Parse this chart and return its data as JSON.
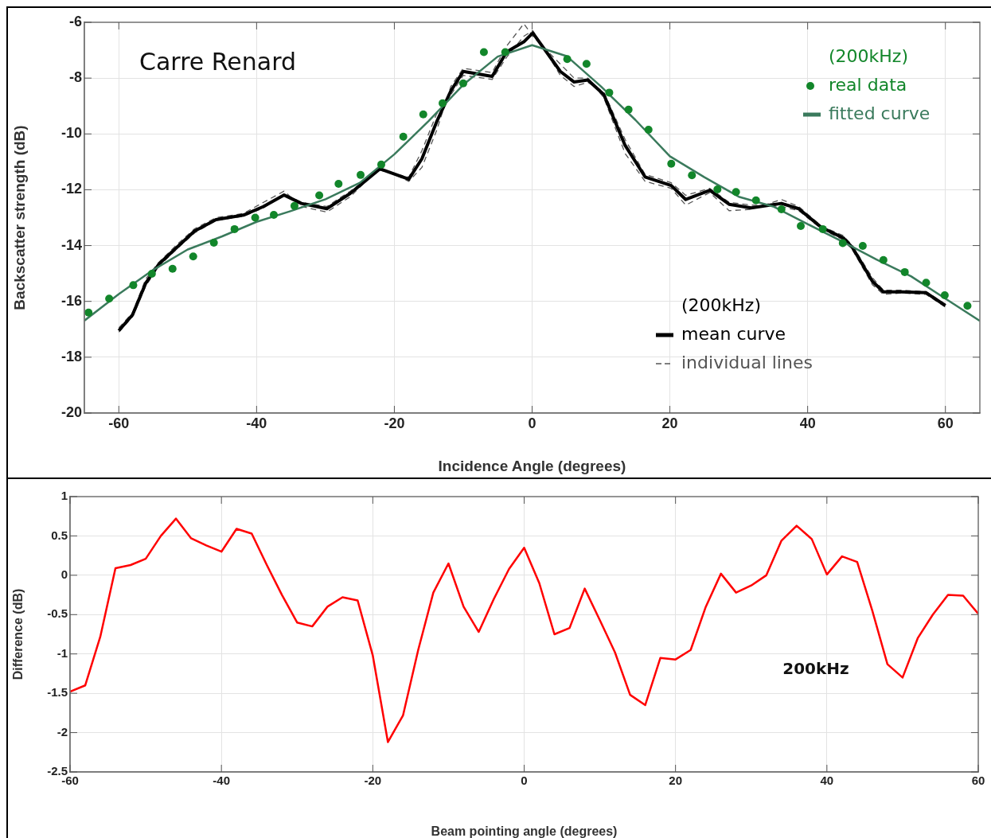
{
  "chart_data": [
    {
      "type": "line",
      "xlabel": "Incidence Angle (degrees)",
      "ylabel": "Backscatter strength (dB)",
      "annotations": [
        "Carre Renard",
        "(200kHz)",
        "(200kHz)"
      ],
      "xlim": [
        -65,
        65
      ],
      "xticks": [
        -60,
        -40,
        -20,
        0,
        20,
        40,
        60
      ],
      "ylim": [
        -20,
        -6
      ],
      "yticks": [
        -20,
        -18,
        -16,
        -14,
        -12,
        -10,
        -8,
        -6
      ],
      "grid": true,
      "legend": "right",
      "marker": "none",
      "series": [
        {
          "name": "real data",
          "type": "scatter",
          "marker": "circle",
          "color": "#12862a",
          "x": [
            -64.4,
            -61.4,
            -57.9,
            -55.2,
            -52.2,
            -49.2,
            -46.2,
            -43.2,
            -40.2,
            -37.5,
            -34.5,
            -30.9,
            -28.1,
            -24.9,
            -21.9,
            -18.7,
            -15.8,
            -13.0,
            -10.0,
            -7.0,
            -3.9,
            5.1,
            7.9,
            11.2,
            14.0,
            16.9,
            20.2,
            23.2,
            26.9,
            29.6,
            32.5,
            36.2,
            39.0,
            42.2,
            45.1,
            48.0,
            51.0,
            54.1,
            57.2,
            59.9,
            63.2
          ],
          "values": [
            -16.4,
            -15.9,
            -15.42,
            -15.01,
            -14.83,
            -14.39,
            -13.9,
            -13.41,
            -13.0,
            -12.9,
            -12.58,
            -12.2,
            -11.79,
            -11.47,
            -11.1,
            -10.1,
            -9.3,
            -8.9,
            -8.19,
            -7.07,
            -7.07,
            -7.32,
            -7.49,
            -8.52,
            -9.13,
            -9.85,
            -11.07,
            -11.48,
            -11.99,
            -12.08,
            -12.38,
            -12.7,
            -13.3,
            -13.41,
            -13.91,
            -14.01,
            -14.52,
            -14.95,
            -15.33,
            -15.78,
            -16.16
          ]
        },
        {
          "name": "fitted curve",
          "color": "#3a7a5c",
          "x": [
            -65,
            -60,
            -55,
            -50,
            -45,
            -40,
            -35,
            -30,
            -25,
            -20,
            -15,
            -10,
            -5,
            0,
            5,
            10,
            15,
            20,
            25,
            30,
            35,
            40,
            45,
            50,
            55,
            60,
            65
          ],
          "values": [
            -16.69,
            -15.74,
            -14.87,
            -14.14,
            -13.67,
            -13.15,
            -12.76,
            -12.34,
            -11.75,
            -10.73,
            -9.53,
            -8.24,
            -7.23,
            -6.82,
            -7.21,
            -8.3,
            -9.5,
            -10.8,
            -11.55,
            -12.25,
            -12.6,
            -13.23,
            -13.85,
            -14.5,
            -15.1,
            -15.9,
            -16.7
          ]
        },
        {
          "name": "mean curve",
          "color": "#000000",
          "x": [
            -60,
            -58,
            -56.1,
            -54.2,
            -51.5,
            -49,
            -45.9,
            -41.9,
            -39,
            -36,
            -33.5,
            -29.8,
            -26.4,
            -22.1,
            -17.9,
            -16,
            -13.9,
            -11.8,
            -10,
            -5.8,
            -3.7,
            -1.2,
            0.1,
            4.1,
            6.1,
            8.1,
            10.4,
            13.5,
            16.4,
            20.2,
            22.3,
            25.8,
            28.6,
            31.8,
            36.2,
            38.7,
            42,
            45.2,
            46.5,
            49.4,
            51,
            53.6,
            57.2,
            60
          ],
          "values": [
            -17.05,
            -16.48,
            -15.35,
            -14.67,
            -14.05,
            -13.48,
            -13.07,
            -12.91,
            -12.6,
            -12.19,
            -12.49,
            -12.68,
            -12.13,
            -11.25,
            -11.62,
            -10.89,
            -9.59,
            -8.46,
            -7.76,
            -7.94,
            -7.06,
            -6.7,
            -6.38,
            -7.76,
            -8.14,
            -8.07,
            -8.59,
            -10.41,
            -11.54,
            -11.85,
            -12.35,
            -12.02,
            -12.52,
            -12.65,
            -12.49,
            -12.68,
            -13.35,
            -13.73,
            -14.07,
            -15.28,
            -15.66,
            -15.66,
            -15.69,
            -16.15
          ]
        },
        {
          "name": "individual lines",
          "line_style": "dashed",
          "color": "#555555",
          "x": [
            -60,
            -58,
            -56.1,
            -54.2,
            -51.5,
            -49,
            -45.9,
            -41.9,
            -39,
            -36,
            -33.5,
            -29.8,
            -26.4,
            -22.1,
            -17.9,
            -16,
            -13.9,
            -11.8,
            -10,
            -5.8,
            -3.7,
            -1.2,
            0.1,
            4.1,
            6.1,
            8.1,
            10.4,
            13.5,
            16.4,
            20.2,
            22.3,
            25.8,
            28.6,
            31.8,
            36.2,
            38.7,
            42,
            45.2,
            46.5,
            49.4,
            51,
            53.6,
            57.2,
            60
          ],
          "values": [
            -16.95,
            -16.4,
            -15.2,
            -14.6,
            -13.95,
            -13.4,
            -13.0,
            -12.85,
            -12.45,
            -12.05,
            -12.6,
            -12.8,
            -12.25,
            -11.2,
            -11.7,
            -11.2,
            -9.9,
            -8.3,
            -7.65,
            -7.8,
            -6.85,
            -6.05,
            -6.5,
            -7.5,
            -8.0,
            -8.0,
            -8.7,
            -10.7,
            -11.7,
            -11.95,
            -12.55,
            -12.1,
            -12.75,
            -12.7,
            -12.35,
            -12.6,
            -13.3,
            -13.65,
            -14.0,
            -15.15,
            -15.6,
            -15.6,
            -15.65,
            -16.1
          ]
        },
        {
          "line_style": "dashed",
          "color": "#555555",
          "x": [
            -60,
            -58,
            -56.1,
            -54.2,
            -51.5,
            -49,
            -45.9,
            -41.9,
            -39,
            -36,
            -33.5,
            -29.8,
            -26.4,
            -22.1,
            -17.9,
            -16,
            -13.9,
            -11.8,
            -10,
            -5.8,
            -3.7,
            -1.2,
            0.1,
            4.1,
            6.1,
            8.1,
            10.4,
            13.5,
            16.4,
            20.2,
            22.3,
            25.8,
            28.6,
            31.8,
            36.2,
            38.7,
            42,
            45.2,
            46.5,
            49.4,
            51,
            53.6,
            57.2,
            60
          ],
          "values": [
            -17.1,
            -16.55,
            -15.45,
            -14.75,
            -14.1,
            -13.55,
            -13.1,
            -12.95,
            -12.65,
            -12.15,
            -12.45,
            -12.6,
            -12.05,
            -11.3,
            -11.55,
            -10.6,
            -9.3,
            -8.6,
            -7.9,
            -8.05,
            -7.25,
            -6.5,
            -6.3,
            -7.9,
            -8.3,
            -8.15,
            -8.5,
            -10.2,
            -11.45,
            -11.75,
            -12.2,
            -11.95,
            -12.45,
            -12.55,
            -12.6,
            -12.75,
            -13.4,
            -13.8,
            -14.15,
            -15.4,
            -15.75,
            -15.7,
            -15.75,
            -16.2
          ]
        }
      ]
    },
    {
      "type": "line",
      "xlabel": "Beam pointing angle (degrees)",
      "ylabel": "Difference (dB)",
      "annotations": [
        "200kHz"
      ],
      "xlim": [
        -60,
        60
      ],
      "xticks": [
        -60,
        -40,
        -20,
        0,
        20,
        40,
        60
      ],
      "ylim": [
        -2.5,
        1
      ],
      "yticks": [
        -2.5,
        -2,
        -1.5,
        -1,
        -0.5,
        0,
        0.5,
        1
      ],
      "grid": true,
      "marker": "none",
      "series": [
        {
          "color": "#ff0000",
          "x": [
            -60,
            -58,
            -56,
            -54,
            -52,
            -50,
            -48,
            -46,
            -44,
            -42,
            -40,
            -38,
            -36,
            -34,
            -32,
            -30,
            -28,
            -26,
            -24,
            -22,
            -20,
            -18,
            -16,
            -14,
            -12,
            -10,
            -8,
            -6,
            -4,
            -2,
            0,
            2,
            4,
            6,
            8,
            10,
            12,
            14,
            16,
            18,
            20,
            22,
            24,
            26,
            28,
            30,
            32,
            34,
            36,
            38,
            40,
            42,
            44,
            46,
            48,
            50,
            52,
            54,
            56,
            58,
            60
          ],
          "values": [
            -1.48,
            -1.4,
            -0.78,
            0.09,
            0.13,
            0.21,
            0.5,
            0.72,
            0.47,
            0.38,
            0.3,
            0.59,
            0.53,
            0.13,
            -0.25,
            -0.6,
            -0.65,
            -0.4,
            -0.28,
            -0.32,
            -1.02,
            -2.12,
            -1.78,
            -0.95,
            -0.22,
            0.15,
            -0.4,
            -0.72,
            -0.3,
            0.08,
            0.35,
            -0.1,
            -0.75,
            -0.67,
            -0.17,
            -0.57,
            -0.98,
            -1.52,
            -1.65,
            -1.05,
            -1.07,
            -0.95,
            -0.4,
            0.02,
            -0.22,
            -0.13,
            0.0,
            0.44,
            0.63,
            0.46,
            0.01,
            0.24,
            0.17,
            -0.45,
            -1.13,
            -1.3,
            -0.8,
            -0.5,
            -0.25,
            -0.26,
            -0.49
          ]
        }
      ]
    }
  ]
}
